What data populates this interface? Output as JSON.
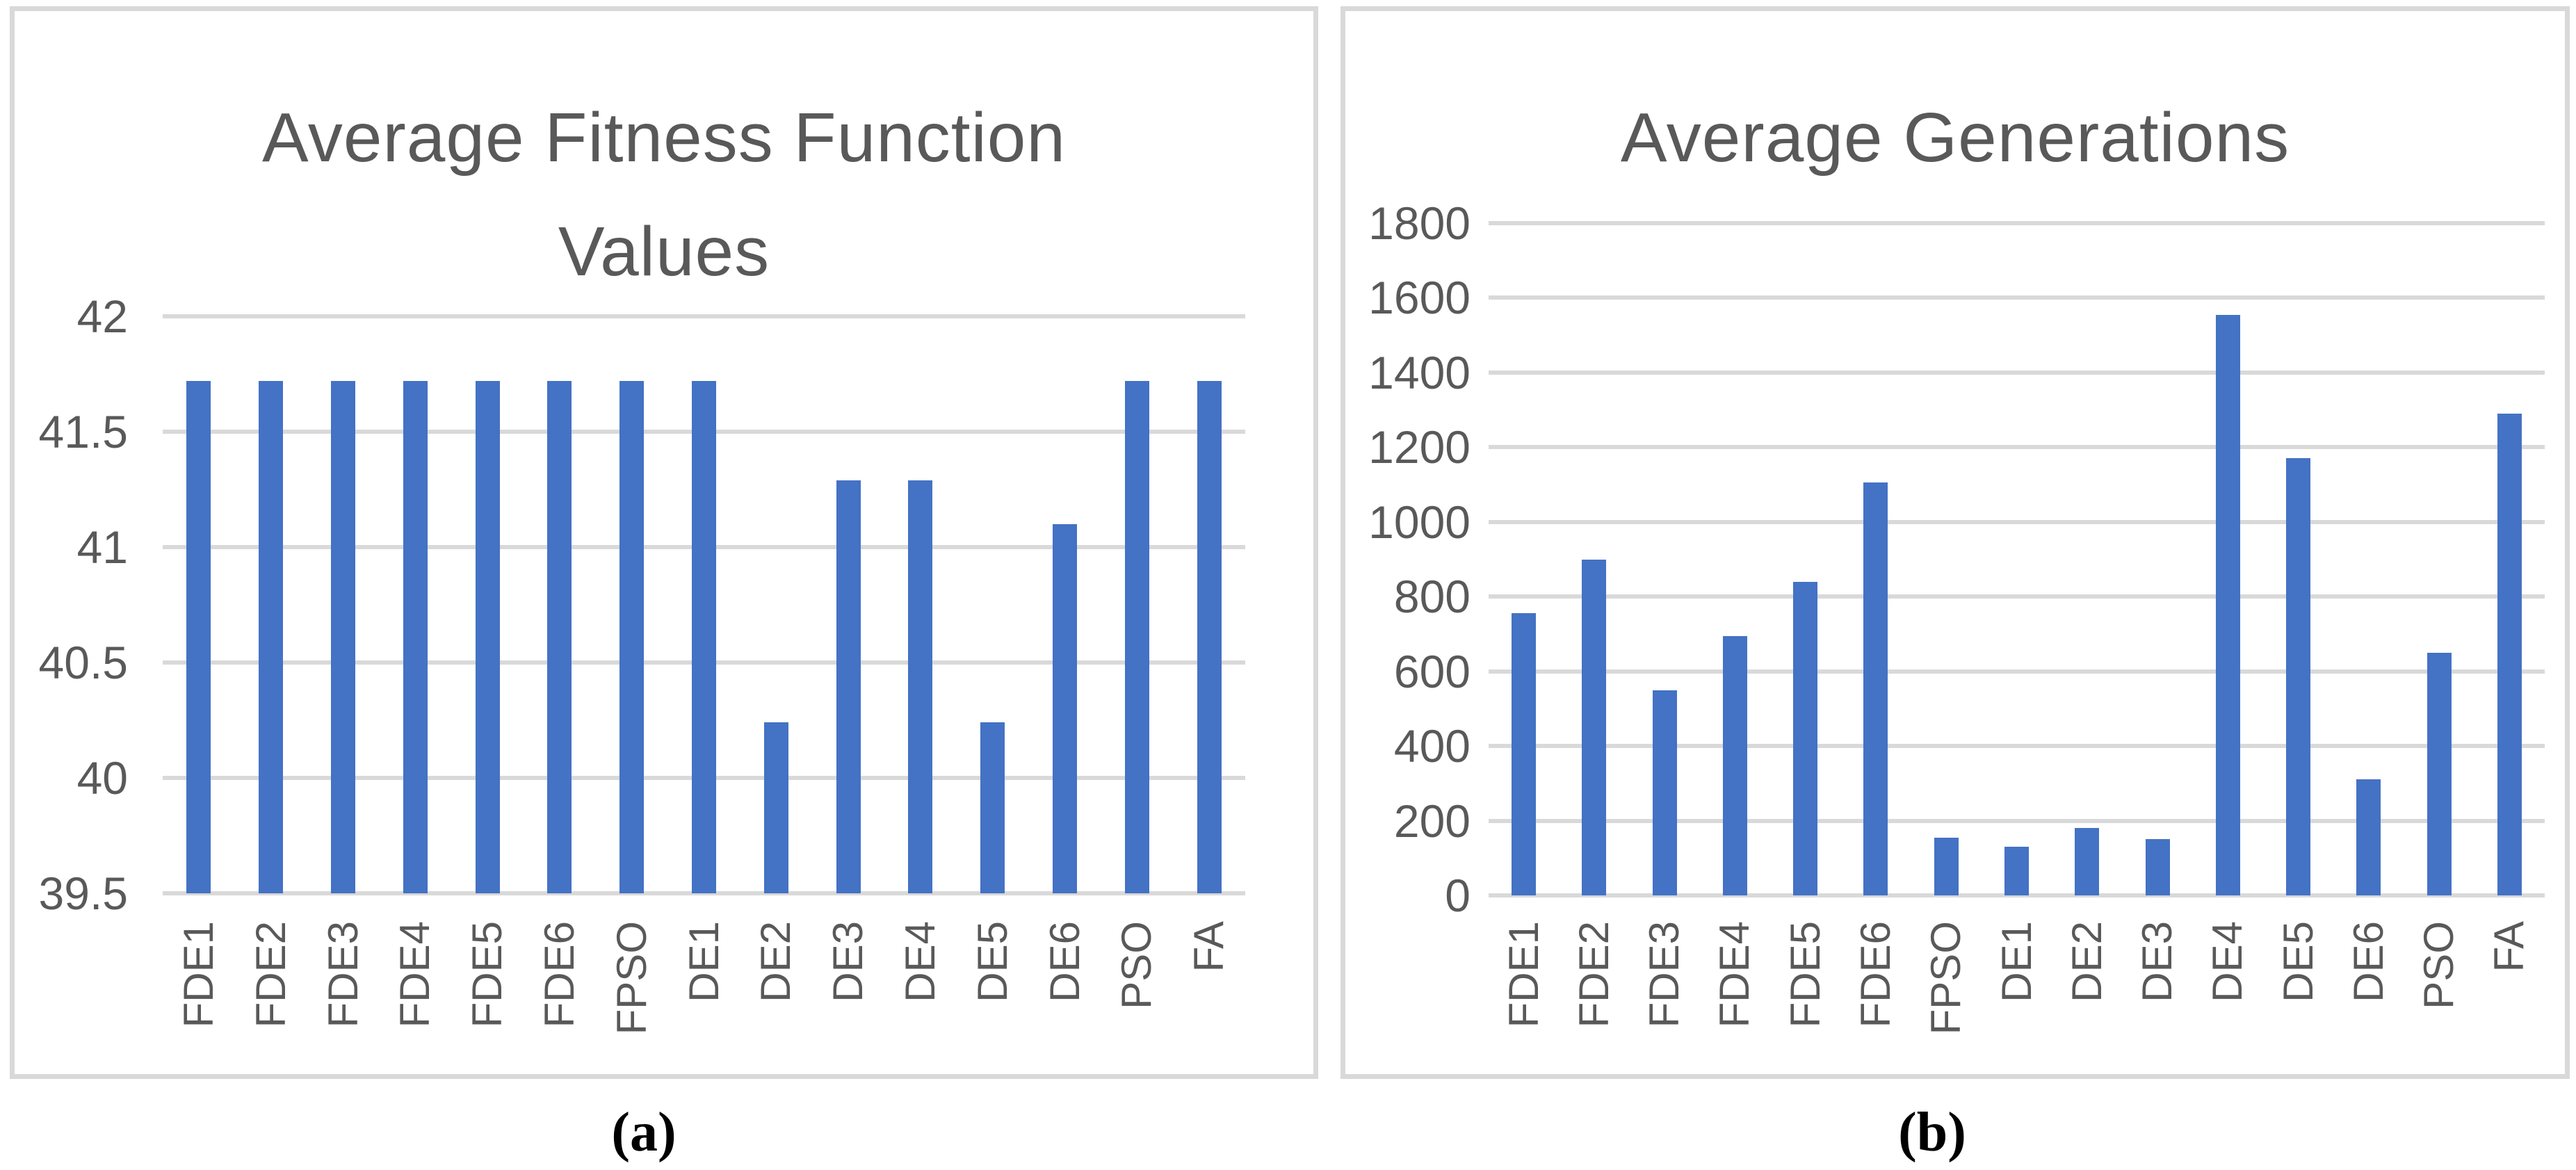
{
  "figure": {
    "description": "Two-panel bar chart figure comparing optimization algorithms",
    "background": "#FFFFFF"
  },
  "colors": {
    "bar": "#4472C4",
    "gridline": "#D9D9D9",
    "panel_border": "#D9D9D9",
    "axis_text": "#595959",
    "title_text": "#595959",
    "caption_text": "#000000"
  },
  "chart_data": [
    {
      "type": "bar",
      "title": "Average Fitness Function Values",
      "title_lines": [
        "Average Fitness Function",
        "Values"
      ],
      "caption": "(a)",
      "categories": [
        "FDE1",
        "FDE2",
        "FDE3",
        "FDE4",
        "FDE5",
        "FDE6",
        "FPSO",
        "DE1",
        "DE2",
        "DE3",
        "DE4",
        "DE5",
        "DE6",
        "PSO",
        "FA"
      ],
      "values": [
        41.72,
        41.72,
        41.72,
        41.72,
        41.72,
        41.72,
        41.72,
        41.72,
        40.24,
        41.29,
        41.29,
        40.24,
        41.1,
        41.72,
        41.72
      ],
      "xlabel": "",
      "ylabel": "",
      "ylim": [
        39.5,
        42
      ],
      "ytick_step": 0.5,
      "ytick_labels": [
        "42",
        "41.5",
        "41",
        "40.5",
        "40",
        "39.5"
      ],
      "grid": true,
      "legend": "none",
      "bar_color": "#4472C4"
    },
    {
      "type": "bar",
      "title": "Average Generations",
      "title_lines": [
        "Average Generations"
      ],
      "caption": "(b)",
      "categories": [
        "FDE1",
        "FDE2",
        "FDE3",
        "FDE4",
        "FDE5",
        "FDE6",
        "FPSO",
        "DE1",
        "DE2",
        "DE3",
        "DE4",
        "DE5",
        "DE6",
        "PSO",
        "FA"
      ],
      "values": [
        755,
        900,
        550,
        695,
        840,
        1105,
        155,
        130,
        180,
        150,
        1555,
        1170,
        310,
        650,
        1290
      ],
      "xlabel": "",
      "ylabel": "",
      "ylim": [
        0,
        1800
      ],
      "ytick_step": 200,
      "ytick_labels": [
        "1800",
        "1600",
        "1400",
        "1200",
        "1000",
        "800",
        "600",
        "400",
        "200",
        "0"
      ],
      "grid": true,
      "legend": "none",
      "bar_color": "#4472C4"
    }
  ]
}
